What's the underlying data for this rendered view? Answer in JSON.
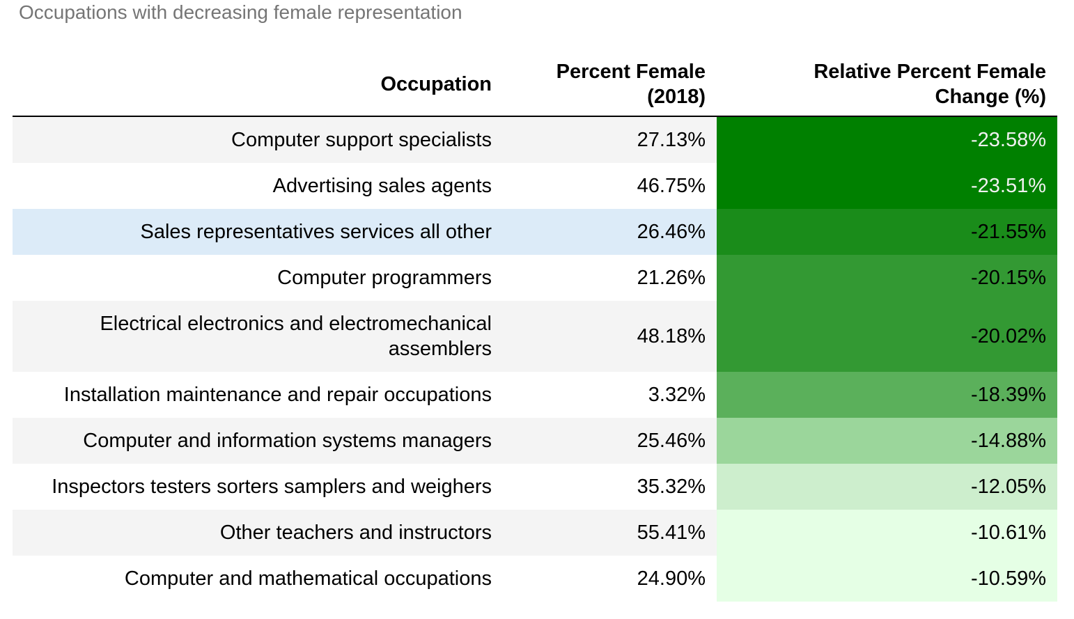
{
  "caption": "Occupations with decreasing female representation",
  "header": {
    "occupation": "Occupation",
    "percent_female_line1": "Percent Female",
    "percent_female_line2": "(2018)",
    "change_line1": "Relative Percent Female",
    "change_line2": "Change (%)"
  },
  "rows": [
    {
      "occupation": "Computer support specialists",
      "percent_female": "27.13%",
      "change": "-23.58%",
      "change_bg": "#008000",
      "change_fg": "#f1f1f1"
    },
    {
      "occupation": "Advertising sales agents",
      "percent_female": "46.75%",
      "change": "-23.51%",
      "change_bg": "#008000",
      "change_fg": "#f1f1f1"
    },
    {
      "occupation": "Sales representatives services all other",
      "percent_female": "26.46%",
      "change": "-21.55%",
      "change_bg": "#1a8c1a",
      "change_fg": "#000000"
    },
    {
      "occupation": "Computer programmers",
      "percent_female": "21.26%",
      "change": "-20.15%",
      "change_bg": "#339933",
      "change_fg": "#000000"
    },
    {
      "occupation": "Electrical electronics and electromechanical",
      "occupation_line2": "assemblers",
      "percent_female": "48.18%",
      "change": "-20.02%",
      "change_bg": "#339933",
      "change_fg": "#000000"
    },
    {
      "occupation": "Installation maintenance and repair occupations",
      "percent_female": "3.32%",
      "change": "-18.39%",
      "change_bg": "#5bb05b",
      "change_fg": "#000000"
    },
    {
      "occupation": "Computer and information systems managers",
      "percent_female": "25.46%",
      "change": "-14.88%",
      "change_bg": "#9bd69b",
      "change_fg": "#000000"
    },
    {
      "occupation": "Inspectors testers sorters samplers and weighers",
      "percent_female": "35.32%",
      "change": "-12.05%",
      "change_bg": "#cdeecd",
      "change_fg": "#000000"
    },
    {
      "occupation": "Other teachers and instructors",
      "percent_female": "55.41%",
      "change": "-10.61%",
      "change_bg": "#e5ffe5",
      "change_fg": "#000000"
    },
    {
      "occupation": "Computer and mathematical occupations",
      "percent_female": "24.90%",
      "change": "-10.59%",
      "change_bg": "#e5ffe5",
      "change_fg": "#000000"
    }
  ],
  "chart_data": {
    "type": "table",
    "title": "Occupations with decreasing female representation",
    "columns": [
      "Occupation",
      "Percent Female (2018)",
      "Relative Percent Female Change (%)"
    ],
    "rows": [
      [
        "Computer support specialists",
        27.13,
        -23.58
      ],
      [
        "Advertising sales agents",
        46.75,
        -23.51
      ],
      [
        "Sales representatives services all other",
        26.46,
        -21.55
      ],
      [
        "Computer programmers",
        21.26,
        -20.15
      ],
      [
        "Electrical electronics and electromechanical assemblers",
        48.18,
        -20.02
      ],
      [
        "Installation maintenance and repair occupations",
        3.32,
        -18.39
      ],
      [
        "Computer and information systems managers",
        25.46,
        -14.88
      ],
      [
        "Inspectors testers sorters samplers and weighers",
        35.32,
        -12.05
      ],
      [
        "Other teachers and instructors",
        55.41,
        -10.61
      ],
      [
        "Computer and mathematical occupations",
        24.9,
        -10.59
      ]
    ]
  }
}
